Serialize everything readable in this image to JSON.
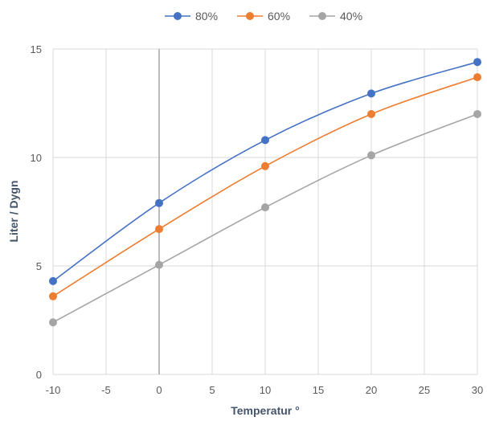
{
  "chart_data": {
    "type": "line",
    "title": "",
    "xlabel": "Temperatur °",
    "ylabel": "Liter / Dygn",
    "x": [
      -10,
      0,
      10,
      20,
      30
    ],
    "xlim": [
      -10,
      30
    ],
    "ylim": [
      0,
      15
    ],
    "x_ticks": [
      -10,
      -5,
      0,
      5,
      10,
      15,
      20,
      25,
      30
    ],
    "y_ticks": [
      0,
      5,
      10,
      15
    ],
    "grid": true,
    "legend_position": "top",
    "series": [
      {
        "name": "80%",
        "color": "#4472c4",
        "values": [
          4.3,
          7.9,
          10.8,
          12.95,
          14.4
        ]
      },
      {
        "name": "60%",
        "color": "#ed7d31",
        "values": [
          3.6,
          6.7,
          9.6,
          12.0,
          13.7
        ]
      },
      {
        "name": "40%",
        "color": "#a5a5a5",
        "values": [
          2.4,
          5.05,
          7.7,
          10.1,
          12.0
        ]
      }
    ]
  }
}
